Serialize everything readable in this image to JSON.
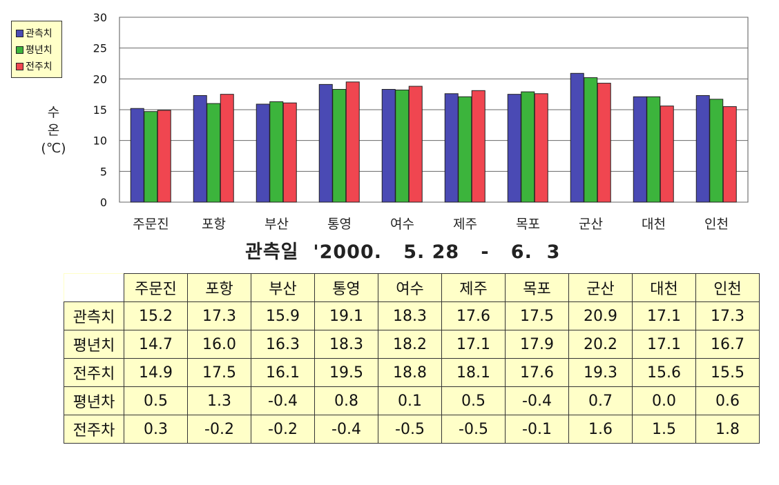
{
  "chart_data": {
    "type": "bar",
    "categories": [
      "주문진",
      "포항",
      "부산",
      "통영",
      "여수",
      "제주",
      "목포",
      "군산",
      "대천",
      "인천"
    ],
    "series": [
      {
        "name": "관측치",
        "color": "#4a4ab4",
        "values": [
          15.2,
          17.3,
          15.9,
          19.1,
          18.3,
          17.6,
          17.5,
          20.9,
          17.1,
          17.3
        ]
      },
      {
        "name": "평년치",
        "color": "#3cb43c",
        "values": [
          14.7,
          16.0,
          16.3,
          18.3,
          18.2,
          17.1,
          17.9,
          20.2,
          17.1,
          16.7
        ]
      },
      {
        "name": "전주치",
        "color": "#f04650",
        "values": [
          14.9,
          17.5,
          16.1,
          19.5,
          18.8,
          18.1,
          17.6,
          19.3,
          15.6,
          15.5
        ]
      }
    ],
    "ylabel": [
      "수",
      "온",
      "(℃)"
    ],
    "subtitle": "관측일  '2000.   5. 28   -   6.  3",
    "ylim": [
      0,
      30
    ],
    "yticks": [
      0,
      5,
      10,
      15,
      20,
      25,
      30
    ],
    "grid": true,
    "legend_position": "top-left"
  },
  "table": {
    "columns": [
      "주문진",
      "포항",
      "부산",
      "통영",
      "여수",
      "제주",
      "목포",
      "군산",
      "대천",
      "인천"
    ],
    "rows": [
      {
        "label": "관측치",
        "values": [
          "15.2",
          "17.3",
          "15.9",
          "19.1",
          "18.3",
          "17.6",
          "17.5",
          "20.9",
          "17.1",
          "17.3"
        ]
      },
      {
        "label": "평년치",
        "values": [
          "14.7",
          "16.0",
          "16.3",
          "18.3",
          "18.2",
          "17.1",
          "17.9",
          "20.2",
          "17.1",
          "16.7"
        ]
      },
      {
        "label": "전주치",
        "values": [
          "14.9",
          "17.5",
          "16.1",
          "19.5",
          "18.8",
          "18.1",
          "17.6",
          "19.3",
          "15.6",
          "15.5"
        ]
      },
      {
        "label": "평년차",
        "values": [
          "0.5",
          "1.3",
          "-0.4",
          "0.8",
          "0.1",
          "0.5",
          "-0.4",
          "0.7",
          "0.0",
          "0.6"
        ]
      },
      {
        "label": "전주차",
        "values": [
          "0.3",
          "-0.2",
          "-0.2",
          "-0.4",
          "-0.5",
          "-0.5",
          "-0.1",
          "1.6",
          "1.5",
          "1.8"
        ]
      }
    ]
  }
}
